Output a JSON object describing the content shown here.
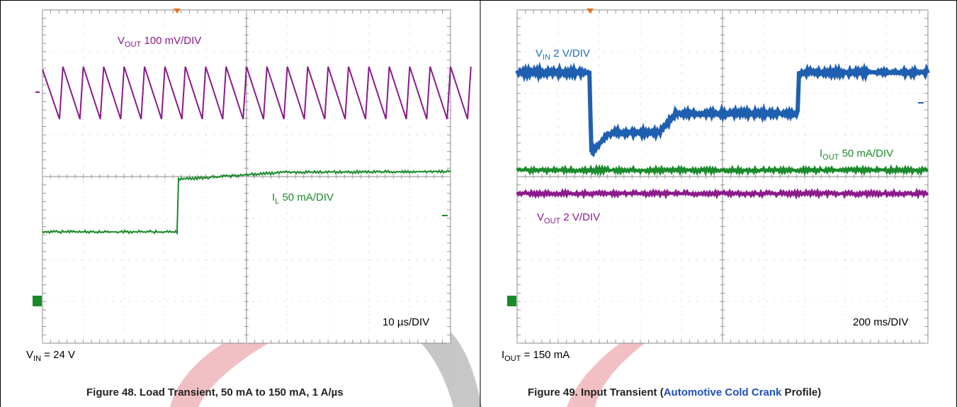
{
  "figures": [
    {
      "traces": [
        {
          "main": "V",
          "sub": "OUT",
          "rest": " 100 mV/DIV"
        },
        {
          "main": "I",
          "sub": "L",
          "rest": " 50 mA/DIV"
        }
      ],
      "timebase": "10 µs/DIV",
      "condition": {
        "main": "V",
        "sub": "IN",
        "rest": " = 24 V"
      },
      "caption": [
        "Figure 48. Load Transient, 50 mA to 150 mA, 1 A/µs"
      ]
    },
    {
      "traces": [
        {
          "main": "V",
          "sub": "IN",
          "rest": " 2 V/DIV"
        },
        {
          "main": "I",
          "sub": "OUT",
          "rest": " 50 mA/DIV"
        },
        {
          "main": "V",
          "sub": "OUT",
          "rest": " 2 V/DIV"
        }
      ],
      "timebase": "200 ms/DIV",
      "condition": {
        "main": "I",
        "sub": "OUT",
        "rest": " = 150 mA"
      },
      "caption": [
        "Figure 49. Input Transient (",
        "Automotive Cold Crank",
        " Profile)"
      ]
    }
  ]
}
